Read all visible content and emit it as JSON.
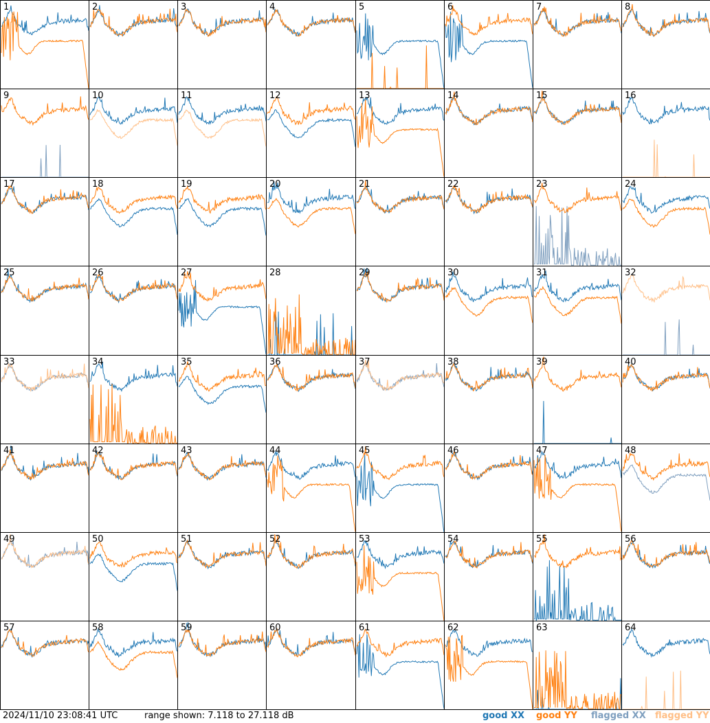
{
  "footer": {
    "timestamp": "2024/11/10 23:08:41 UTC",
    "range_text": "range shown: 7.118 to 27.118 dB"
  },
  "legend": [
    {
      "label": "good XX",
      "color": "#1f77b4"
    },
    {
      "label": "good YY",
      "color": "#ff7f0e"
    },
    {
      "label": "flagged XX",
      "color": "#7f9fbf"
    },
    {
      "label": "flagged YY",
      "color": "#ffbf87"
    }
  ],
  "chart_data": {
    "type": "line",
    "grid": "8x8 small multiples",
    "ylim": [
      7.118,
      27.118
    ],
    "y_unit": "dB",
    "series_kinds": [
      "good XX",
      "good YY",
      "flagged XX",
      "flagged YY"
    ],
    "profile_key": {
      "A": "bandpass shape",
      "B": "XX low plateau",
      "C": "noisy / collapsed",
      "D": "flat low",
      "E": "zero"
    },
    "panels": [
      {
        "id": 1,
        "xx": {
          "status": "good",
          "profile": "A"
        },
        "yy": {
          "status": "good",
          "profile": "B"
        }
      },
      {
        "id": 2,
        "xx": {
          "status": "good",
          "profile": "A"
        },
        "yy": {
          "status": "good",
          "profile": "A"
        }
      },
      {
        "id": 3,
        "xx": {
          "status": "good",
          "profile": "A"
        },
        "yy": {
          "status": "good",
          "profile": "A"
        }
      },
      {
        "id": 4,
        "xx": {
          "status": "good",
          "profile": "A"
        },
        "yy": {
          "status": "good",
          "profile": "A"
        }
      },
      {
        "id": 5,
        "xx": {
          "status": "good",
          "profile": "B"
        },
        "yy": {
          "status": "good",
          "profile": "E"
        }
      },
      {
        "id": 6,
        "xx": {
          "status": "good",
          "profile": "B"
        },
        "yy": {
          "status": "good",
          "profile": "A"
        }
      },
      {
        "id": 7,
        "xx": {
          "status": "good",
          "profile": "A"
        },
        "yy": {
          "status": "good",
          "profile": "A"
        }
      },
      {
        "id": 8,
        "xx": {
          "status": "good",
          "profile": "A"
        },
        "yy": {
          "status": "good",
          "profile": "A"
        }
      },
      {
        "id": 9,
        "xx": {
          "status": "flagged",
          "profile": "E"
        },
        "yy": {
          "status": "good",
          "profile": "A"
        }
      },
      {
        "id": 10,
        "xx": {
          "status": "good",
          "profile": "A"
        },
        "yy": {
          "status": "flagged",
          "profile": "D"
        }
      },
      {
        "id": 11,
        "xx": {
          "status": "good",
          "profile": "A"
        },
        "yy": {
          "status": "flagged",
          "profile": "D"
        }
      },
      {
        "id": 12,
        "xx": {
          "status": "good",
          "profile": "D"
        },
        "yy": {
          "status": "good",
          "profile": "A"
        }
      },
      {
        "id": 13,
        "xx": {
          "status": "good",
          "profile": "A"
        },
        "yy": {
          "status": "good",
          "profile": "B"
        }
      },
      {
        "id": 14,
        "xx": {
          "status": "good",
          "profile": "A"
        },
        "yy": {
          "status": "good",
          "profile": "A"
        }
      },
      {
        "id": 15,
        "xx": {
          "status": "good",
          "profile": "A"
        },
        "yy": {
          "status": "good",
          "profile": "A"
        }
      },
      {
        "id": 16,
        "xx": {
          "status": "good",
          "profile": "A"
        },
        "yy": {
          "status": "flagged",
          "profile": "E"
        }
      },
      {
        "id": 17,
        "xx": {
          "status": "good",
          "profile": "A"
        },
        "yy": {
          "status": "good",
          "profile": "A"
        }
      },
      {
        "id": 18,
        "xx": {
          "status": "good",
          "profile": "D"
        },
        "yy": {
          "status": "good",
          "profile": "A"
        }
      },
      {
        "id": 19,
        "xx": {
          "status": "good",
          "profile": "D"
        },
        "yy": {
          "status": "good",
          "profile": "A"
        }
      },
      {
        "id": 20,
        "xx": {
          "status": "good",
          "profile": "A"
        },
        "yy": {
          "status": "good",
          "profile": "D"
        }
      },
      {
        "id": 21,
        "xx": {
          "status": "good",
          "profile": "A"
        },
        "yy": {
          "status": "good",
          "profile": "A"
        }
      },
      {
        "id": 22,
        "xx": {
          "status": "good",
          "profile": "A"
        },
        "yy": {
          "status": "good",
          "profile": "A"
        }
      },
      {
        "id": 23,
        "xx": {
          "status": "flagged",
          "profile": "C"
        },
        "yy": {
          "status": "good",
          "profile": "A"
        }
      },
      {
        "id": 24,
        "xx": {
          "status": "good",
          "profile": "A"
        },
        "yy": {
          "status": "good",
          "profile": "D"
        }
      },
      {
        "id": 25,
        "xx": {
          "status": "good",
          "profile": "A"
        },
        "yy": {
          "status": "good",
          "profile": "A"
        }
      },
      {
        "id": 26,
        "xx": {
          "status": "good",
          "profile": "A"
        },
        "yy": {
          "status": "good",
          "profile": "A"
        }
      },
      {
        "id": 27,
        "xx": {
          "status": "good",
          "profile": "B"
        },
        "yy": {
          "status": "good",
          "profile": "A"
        }
      },
      {
        "id": 28,
        "xx": {
          "status": "good",
          "profile": "E"
        },
        "yy": {
          "status": "good",
          "profile": "C"
        }
      },
      {
        "id": 29,
        "xx": {
          "status": "good",
          "profile": "A"
        },
        "yy": {
          "status": "good",
          "profile": "A"
        }
      },
      {
        "id": 30,
        "xx": {
          "status": "good",
          "profile": "A"
        },
        "yy": {
          "status": "good",
          "profile": "D"
        }
      },
      {
        "id": 31,
        "xx": {
          "status": "good",
          "profile": "A"
        },
        "yy": {
          "status": "good",
          "profile": "D"
        }
      },
      {
        "id": 32,
        "xx": {
          "status": "flagged",
          "profile": "E"
        },
        "yy": {
          "status": "flagged",
          "profile": "A"
        }
      },
      {
        "id": 33,
        "xx": {
          "status": "flagged",
          "profile": "A"
        },
        "yy": {
          "status": "flagged",
          "profile": "A"
        }
      },
      {
        "id": 34,
        "xx": {
          "status": "good",
          "profile": "A"
        },
        "yy": {
          "status": "good",
          "profile": "C"
        }
      },
      {
        "id": 35,
        "xx": {
          "status": "good",
          "profile": "D"
        },
        "yy": {
          "status": "good",
          "profile": "A"
        }
      },
      {
        "id": 36,
        "xx": {
          "status": "good",
          "profile": "A"
        },
        "yy": {
          "status": "good",
          "profile": "A"
        }
      },
      {
        "id": 37,
        "xx": {
          "status": "flagged",
          "profile": "A"
        },
        "yy": {
          "status": "flagged",
          "profile": "A"
        }
      },
      {
        "id": 38,
        "xx": {
          "status": "good",
          "profile": "A"
        },
        "yy": {
          "status": "good",
          "profile": "A"
        }
      },
      {
        "id": 39,
        "xx": {
          "status": "good",
          "profile": "E"
        },
        "yy": {
          "status": "good",
          "profile": "A"
        }
      },
      {
        "id": 40,
        "xx": {
          "status": "good",
          "profile": "A"
        },
        "yy": {
          "status": "good",
          "profile": "A"
        }
      },
      {
        "id": 41,
        "xx": {
          "status": "good",
          "profile": "A"
        },
        "yy": {
          "status": "good",
          "profile": "A"
        }
      },
      {
        "id": 42,
        "xx": {
          "status": "good",
          "profile": "A"
        },
        "yy": {
          "status": "good",
          "profile": "A"
        }
      },
      {
        "id": 43,
        "xx": {
          "status": "good",
          "profile": "A"
        },
        "yy": {
          "status": "good",
          "profile": "A"
        }
      },
      {
        "id": 44,
        "xx": {
          "status": "good",
          "profile": "A"
        },
        "yy": {
          "status": "good",
          "profile": "B"
        }
      },
      {
        "id": 45,
        "xx": {
          "status": "good",
          "profile": "B"
        },
        "yy": {
          "status": "good",
          "profile": "A"
        }
      },
      {
        "id": 46,
        "xx": {
          "status": "good",
          "profile": "A"
        },
        "yy": {
          "status": "good",
          "profile": "A"
        }
      },
      {
        "id": 47,
        "xx": {
          "status": "good",
          "profile": "A"
        },
        "yy": {
          "status": "good",
          "profile": "B"
        }
      },
      {
        "id": 48,
        "xx": {
          "status": "flagged",
          "profile": "D"
        },
        "yy": {
          "status": "good",
          "profile": "A"
        }
      },
      {
        "id": 49,
        "xx": {
          "status": "flagged",
          "profile": "A"
        },
        "yy": {
          "status": "flagged",
          "profile": "A"
        }
      },
      {
        "id": 50,
        "xx": {
          "status": "good",
          "profile": "D"
        },
        "yy": {
          "status": "good",
          "profile": "A"
        }
      },
      {
        "id": 51,
        "xx": {
          "status": "good",
          "profile": "A"
        },
        "yy": {
          "status": "good",
          "profile": "A"
        }
      },
      {
        "id": 52,
        "xx": {
          "status": "good",
          "profile": "A"
        },
        "yy": {
          "status": "good",
          "profile": "A"
        }
      },
      {
        "id": 53,
        "xx": {
          "status": "good",
          "profile": "A"
        },
        "yy": {
          "status": "good",
          "profile": "B"
        }
      },
      {
        "id": 54,
        "xx": {
          "status": "good",
          "profile": "A"
        },
        "yy": {
          "status": "good",
          "profile": "A"
        }
      },
      {
        "id": 55,
        "xx": {
          "status": "good",
          "profile": "C"
        },
        "yy": {
          "status": "good",
          "profile": "A"
        }
      },
      {
        "id": 56,
        "xx": {
          "status": "good",
          "profile": "A"
        },
        "yy": {
          "status": "good",
          "profile": "A"
        }
      },
      {
        "id": 57,
        "xx": {
          "status": "good",
          "profile": "A"
        },
        "yy": {
          "status": "good",
          "profile": "A"
        }
      },
      {
        "id": 58,
        "xx": {
          "status": "good",
          "profile": "A"
        },
        "yy": {
          "status": "good",
          "profile": "D"
        }
      },
      {
        "id": 59,
        "xx": {
          "status": "good",
          "profile": "A"
        },
        "yy": {
          "status": "good",
          "profile": "A"
        }
      },
      {
        "id": 60,
        "xx": {
          "status": "good",
          "profile": "A"
        },
        "yy": {
          "status": "good",
          "profile": "A"
        }
      },
      {
        "id": 61,
        "xx": {
          "status": "good",
          "profile": "B"
        },
        "yy": {
          "status": "good",
          "profile": "A"
        }
      },
      {
        "id": 62,
        "xx": {
          "status": "good",
          "profile": "A"
        },
        "yy": {
          "status": "good",
          "profile": "B"
        }
      },
      {
        "id": 63,
        "xx": {
          "status": "good",
          "profile": "E"
        },
        "yy": {
          "status": "good",
          "profile": "C"
        }
      },
      {
        "id": 64,
        "xx": {
          "status": "good",
          "profile": "A"
        },
        "yy": {
          "status": "flagged",
          "profile": "E"
        }
      }
    ]
  }
}
